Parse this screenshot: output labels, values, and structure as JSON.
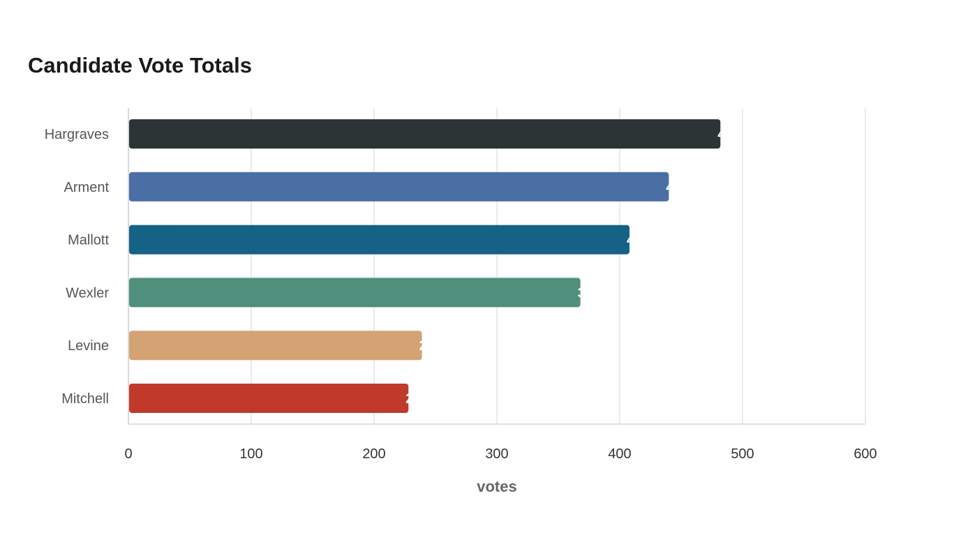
{
  "chart_data": {
    "type": "bar",
    "orientation": "horizontal",
    "title": "Candidate Vote Totals",
    "xlabel": "votes",
    "ylabel": "",
    "categories": [
      "Hargraves",
      "Arment",
      "Mallott",
      "Wexler",
      "Levine",
      "Mitchell"
    ],
    "values": [
      482,
      440,
      408,
      368,
      239,
      228
    ],
    "colors": [
      "#2d3436",
      "#4a6fa5",
      "#166186",
      "#4f8f7b",
      "#d4a373",
      "#c0392b"
    ],
    "xlim": [
      0,
      600
    ],
    "xticks": [
      0,
      100,
      200,
      300,
      400,
      500,
      600
    ],
    "grid": true,
    "legend": "none"
  }
}
